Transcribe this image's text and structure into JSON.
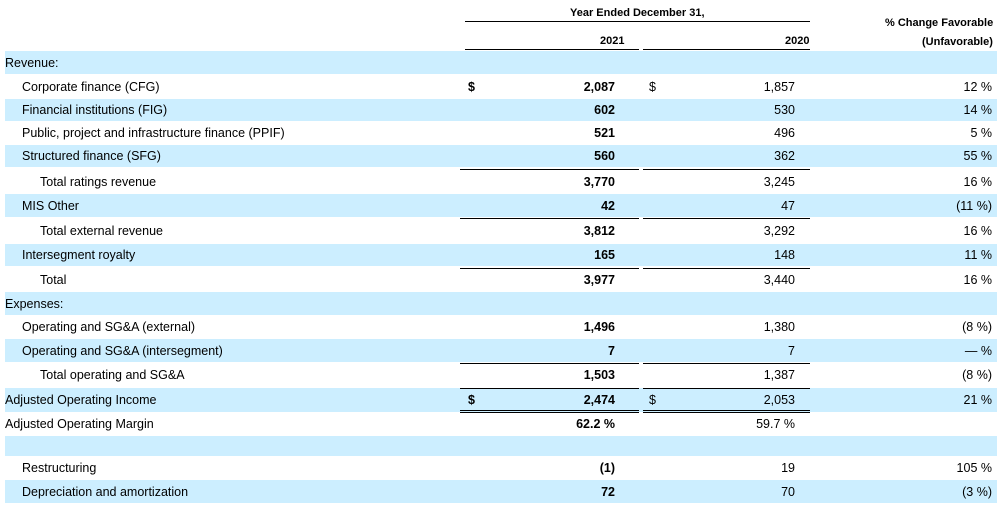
{
  "header": {
    "period": "Year Ended December 31,",
    "col1": "2021",
    "col2": "2020",
    "change_line1": "% Change Favorable",
    "change_line2": "(Unfavorable)"
  },
  "rows": [
    {
      "label": "Revenue:",
      "level": 1,
      "shade": true
    },
    {
      "label": "Corporate finance (CFG)",
      "level": 2,
      "shade": false,
      "dollar": true,
      "v2021": "2,087",
      "v2020": "1,857",
      "change": "12 %"
    },
    {
      "label": "Financial institutions (FIG)",
      "level": 2,
      "shade": true,
      "v2021": "602",
      "v2020": "530",
      "change": "14 %"
    },
    {
      "label": "Public, project and infrastructure finance (PPIF)",
      "level": 2,
      "shade": false,
      "v2021": "521",
      "v2020": "496",
      "change": "5 %"
    },
    {
      "label": "Structured finance (SFG)",
      "level": 2,
      "shade": true,
      "v2021": "560",
      "v2020": "362",
      "change": "55 %"
    },
    {
      "label": "Total ratings revenue",
      "level": 3,
      "shade": false,
      "v2021": "3,770",
      "v2020": "3,245",
      "change": "16 %"
    },
    {
      "label": "MIS Other",
      "level": 2,
      "shade": true,
      "v2021": "42",
      "v2020": "47",
      "change": "(11 %)"
    },
    {
      "label": "Total external revenue",
      "level": 3,
      "shade": false,
      "v2021": "3,812",
      "v2020": "3,292",
      "change": "16 %"
    },
    {
      "label": "Intersegment royalty",
      "level": 2,
      "shade": true,
      "v2021": "165",
      "v2020": "148",
      "change": "11 %"
    },
    {
      "label": "Total",
      "level": 3,
      "shade": false,
      "v2021": "3,977",
      "v2020": "3,440",
      "change": "16 %"
    },
    {
      "label": "Expenses:",
      "level": 1,
      "shade": true
    },
    {
      "label": "Operating and SG&A (external)",
      "level": 2,
      "shade": false,
      "v2021": "1,496",
      "v2020": "1,380",
      "change": "(8 %)"
    },
    {
      "label": "Operating and SG&A (intersegment)",
      "level": 2,
      "shade": true,
      "v2021": "7",
      "v2020": "7",
      "change": "— %"
    },
    {
      "label": "Total operating and SG&A",
      "level": 3,
      "shade": false,
      "v2021": "1,503",
      "v2020": "1,387",
      "change": "(8 %)"
    },
    {
      "label": "Adjusted Operating Income",
      "level": 1,
      "shade": true,
      "dollar": true,
      "v2021": "2,474",
      "v2020": "2,053",
      "change": "21 %"
    },
    {
      "label": "Adjusted Operating Margin",
      "level": 1,
      "shade": false,
      "v2021": "62.2 %",
      "v2020": "59.7 %",
      "change": ""
    },
    {
      "label": "",
      "level": 1,
      "shade": true
    },
    {
      "label": "Restructuring",
      "level": 2,
      "shade": false,
      "v2021": "(1)",
      "v2020": "19",
      "change": "105 %"
    },
    {
      "label": "Depreciation and amortization",
      "level": 2,
      "shade": true,
      "v2021": "72",
      "v2020": "70",
      "change": "(3 %)"
    }
  ],
  "dollar_sign": "$"
}
